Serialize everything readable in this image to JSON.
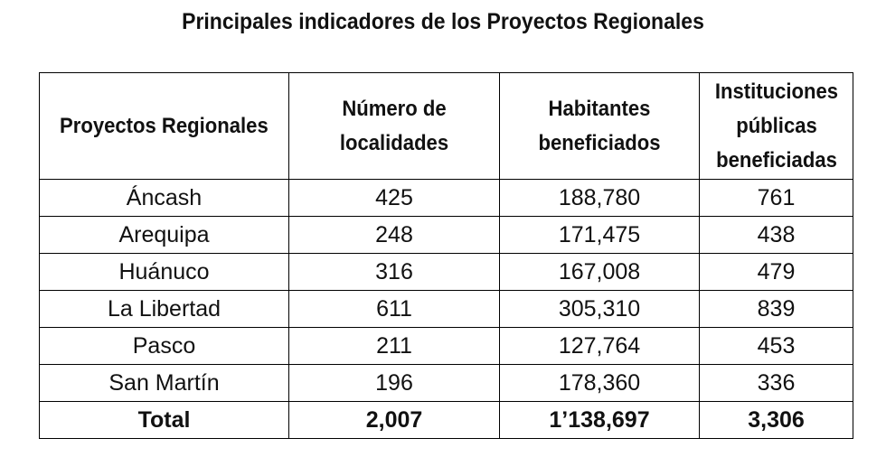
{
  "title": "Principales indicadores de los Proyectos Regionales",
  "table": {
    "headers": [
      "Proyectos Regionales",
      "Número de localidades",
      "Habitantes beneficiados",
      "Instituciones públicas beneficiadas"
    ],
    "rows": [
      [
        "Áncash",
        "425",
        "188,780",
        "761"
      ],
      [
        "Arequipa",
        "248",
        "171,475",
        "438"
      ],
      [
        "Huánuco",
        "316",
        "167,008",
        "479"
      ],
      [
        "La Libertad",
        "611",
        "305,310",
        "839"
      ],
      [
        "Pasco",
        "211",
        "127,764",
        "453"
      ],
      [
        "San Martín",
        "196",
        "178,360",
        "336"
      ]
    ],
    "total": [
      "Total",
      "2,007",
      "1’138,697",
      "3,306"
    ]
  }
}
